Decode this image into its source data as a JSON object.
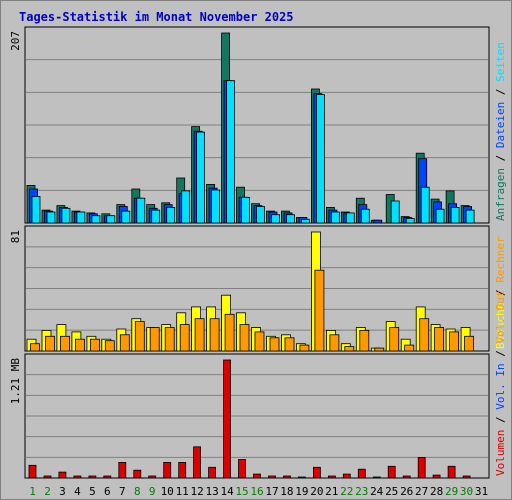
{
  "title": "Tages-Statistik im Monat November 2025",
  "colors": {
    "anfragen": "#13775f",
    "dateien": "#0044ff",
    "seiten": "#00e0ff",
    "besuche": "#ffff00",
    "rechner": "#ff9900",
    "volumen": "#dd0000",
    "weekend_label": "#008000",
    "weekday_label": "#000000",
    "border": "#000000",
    "gridline": "#808080"
  },
  "chart_data": {
    "type": "bar",
    "days": [
      1,
      2,
      3,
      4,
      5,
      6,
      7,
      8,
      9,
      10,
      11,
      12,
      13,
      14,
      15,
      16,
      17,
      18,
      19,
      20,
      21,
      22,
      23,
      24,
      25,
      26,
      27,
      28,
      29,
      30,
      31
    ],
    "weekend_days": [
      1,
      2,
      8,
      9,
      15,
      16,
      22,
      23,
      29,
      30
    ],
    "panels": [
      {
        "id": "top",
        "max_label": "207",
        "max": 207,
        "legend": [
          {
            "text": "Anfragen",
            "color_key": "anfragen"
          },
          {
            "text": "Dateien",
            "color_key": "dateien"
          },
          {
            "text": "Seiten",
            "color_key": "seiten"
          }
        ],
        "series": [
          {
            "name": "Anfragen",
            "color_key": "anfragen",
            "values": [
              41,
              14,
              19,
              13,
              11,
              10,
              20,
              37,
              20,
              22,
              49,
              105,
              42,
              207,
              39,
              21,
              13,
              13,
              6,
              146,
              17,
              12,
              27,
              3,
              31,
              7,
              76,
              26,
              35,
              19,
              0
            ]
          },
          {
            "name": "Dateien",
            "color_key": "dateien",
            "values": [
              37,
              13,
              17,
              12,
              10,
              8,
              18,
              27,
              16,
              20,
              32,
              100,
              38,
              155,
              28,
              19,
              12,
              11,
              6,
              141,
              14,
              11,
              20,
              3,
              0,
              6,
              70,
              23,
              21,
              18,
              0
            ]
          },
          {
            "name": "Seiten",
            "color_key": "seiten",
            "values": [
              29,
              12,
              16,
              12,
              8,
              8,
              13,
              27,
              14,
              17,
              35,
              99,
              36,
              155,
              28,
              18,
              9,
              9,
              4,
              140,
              12,
              11,
              15,
              0,
              24,
              5,
              39,
              15,
              17,
              14,
              0
            ]
          }
        ]
      },
      {
        "id": "middle",
        "max_label": "81",
        "max": 81,
        "legend": [
          {
            "text": "Besuche",
            "color_key": "besuche"
          },
          {
            "text": "Rechner",
            "color_key": "rechner"
          }
        ],
        "series": [
          {
            "name": "Besuche",
            "color_key": "besuche",
            "values": [
              8,
              14,
              18,
              13,
              10,
              8,
              15,
              22,
              16,
              18,
              26,
              30,
              30,
              38,
              26,
              16,
              10,
              11,
              5,
              81,
              14,
              5,
              16,
              2,
              20,
              8,
              30,
              18,
              15,
              16,
              0
            ]
          },
          {
            "name": "Rechner",
            "color_key": "rechner",
            "values": [
              5,
              10,
              10,
              8,
              8,
              7,
              11,
              20,
              16,
              16,
              18,
              22,
              22,
              25,
              18,
              13,
              9,
              9,
              4,
              55,
              11,
              3,
              14,
              2,
              16,
              4,
              22,
              16,
              13,
              10,
              0
            ]
          }
        ]
      },
      {
        "id": "bottom",
        "max_label": "1.21 MB",
        "max": 1.21,
        "legend": [
          {
            "text": "Volumen",
            "color_key": "volumen"
          },
          {
            "text": "Vol. In",
            "color_key": "dateien"
          },
          {
            "text": "Vol. Out",
            "color_key": "rechner"
          }
        ],
        "series": [
          {
            "name": "Volumen",
            "color_key": "volumen",
            "values": [
              0.13,
              0.02,
              0.06,
              0.02,
              0.02,
              0.02,
              0.16,
              0.08,
              0.02,
              0.16,
              0.16,
              0.32,
              0.11,
              1.21,
              0.19,
              0.04,
              0.02,
              0.02,
              0.01,
              0.11,
              0.02,
              0.04,
              0.09,
              0.01,
              0.12,
              0.02,
              0.21,
              0.03,
              0.12,
              0.02,
              0.0
            ]
          }
        ]
      }
    ]
  }
}
